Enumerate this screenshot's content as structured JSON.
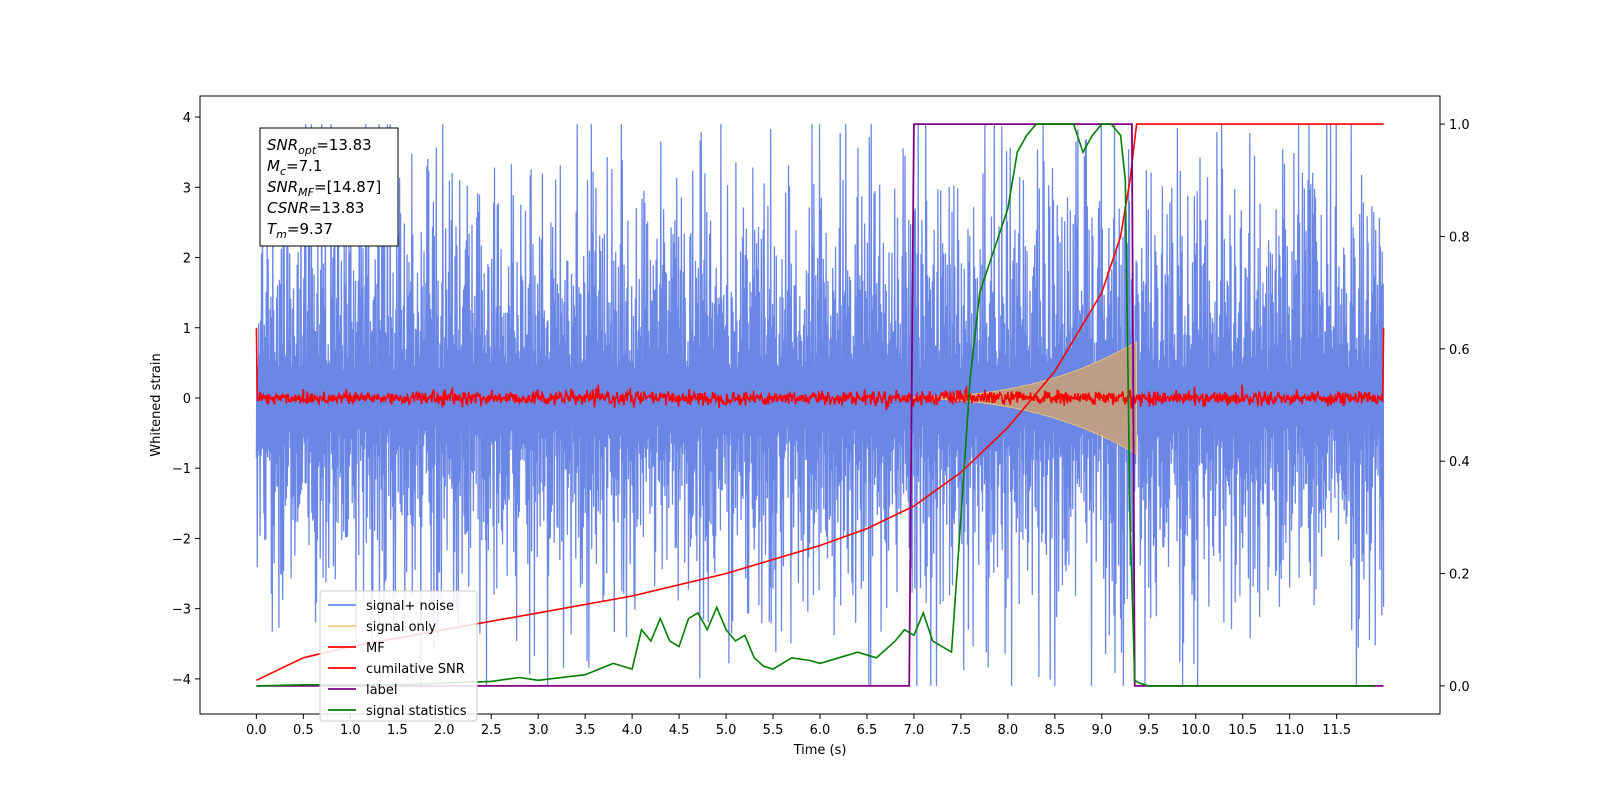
{
  "chart_data": {
    "type": "line",
    "xlabel": "Time (s)",
    "ylabel_left": "Whitened strain",
    "ylabel_right": "",
    "xlim": [
      -0.6,
      12.6
    ],
    "ylim_left": [
      -4.5,
      4.3
    ],
    "ylim_right": [
      -0.05,
      1.05
    ],
    "x_ticks": [
      "0.0",
      "0.5",
      "1.0",
      "1.5",
      "2.0",
      "2.5",
      "3.0",
      "3.5",
      "4.0",
      "4.5",
      "5.0",
      "5.5",
      "6.0",
      "6.5",
      "7.0",
      "7.5",
      "8.0",
      "8.5",
      "9.0",
      "9.5",
      "10.0",
      "10.5",
      "11.0",
      "11.5"
    ],
    "y_left_ticks": [
      "4",
      "3",
      "2",
      "1",
      "0",
      "−1",
      "−2",
      "−3",
      "−4"
    ],
    "y_right_ticks": [
      "1.0",
      "0.8",
      "0.6",
      "0.4",
      "0.2",
      "0.0"
    ],
    "grid": false,
    "legend_position": "lower-left",
    "colors": {
      "signal_noise": "#6b87e6",
      "signal_only": "#f5c97a",
      "signal_band": "#c6a07a",
      "mf": "#ff0000",
      "cumulative_snr": "#ff0000",
      "label": "#800080",
      "signal_statistics": "#008000"
    },
    "annotation": {
      "lines": [
        {
          "base": "SNR",
          "sub": "opt",
          "rest": "=13.83"
        },
        {
          "base": "M",
          "sub": "c",
          "rest": "=7.1"
        },
        {
          "base": "SNR",
          "sub": "MF",
          "rest": "=[14.87]"
        },
        {
          "base": "CSNR",
          "sub": "",
          "rest": "=13.83"
        },
        {
          "base": "T",
          "sub": "m",
          "rest": "=9.37"
        }
      ]
    },
    "series": [
      {
        "name": "signal+ noise",
        "axis": "left",
        "style": "noise band",
        "x_range": [
          0.0,
          12.0
        ],
        "typical_extent": [
          -2.0,
          2.5
        ],
        "max_peak": 3.9,
        "min_peak": -4.1
      },
      {
        "name": "signal only",
        "axis": "left",
        "style": "chirp envelope",
        "start_time": 6.8,
        "end_time": 9.37,
        "peak_amplitude": 0.75
      },
      {
        "name": "MF",
        "axis": "left",
        "style": "noise",
        "x_range": [
          0.0,
          12.0
        ],
        "amplitude": 0.1,
        "edge_values": [
          1.0,
          1.0
        ]
      },
      {
        "name": "cumilative SNR",
        "axis": "right",
        "x": [
          0.0,
          0.5,
          1.0,
          2.0,
          3.0,
          4.0,
          5.0,
          6.0,
          6.5,
          7.0,
          7.5,
          8.0,
          8.5,
          9.0,
          9.2,
          9.3,
          9.37,
          12.0
        ],
        "y": [
          0.01,
          0.05,
          0.07,
          0.1,
          0.13,
          0.16,
          0.2,
          0.25,
          0.28,
          0.32,
          0.38,
          0.46,
          0.56,
          0.7,
          0.8,
          0.9,
          1.0,
          1.0
        ]
      },
      {
        "name": "label",
        "axis": "right",
        "x": [
          0.0,
          6.95,
          7.0,
          9.32,
          9.35,
          12.0
        ],
        "y": [
          0.0,
          0.0,
          1.0,
          1.0,
          0.0,
          0.0
        ]
      },
      {
        "name": "signal statistics",
        "axis": "right",
        "x": [
          0.0,
          0.5,
          1.0,
          1.5,
          2.0,
          2.5,
          2.8,
          3.0,
          3.5,
          3.8,
          4.0,
          4.1,
          4.2,
          4.3,
          4.4,
          4.5,
          4.6,
          4.7,
          4.8,
          4.9,
          5.0,
          5.1,
          5.2,
          5.3,
          5.4,
          5.5,
          5.7,
          5.9,
          6.0,
          6.2,
          6.4,
          6.6,
          6.8,
          6.9,
          7.0,
          7.1,
          7.2,
          7.3,
          7.4,
          7.5,
          7.6,
          7.7,
          7.8,
          7.9,
          8.0,
          8.1,
          8.2,
          8.3,
          8.4,
          8.5,
          8.6,
          8.7,
          8.8,
          8.9,
          9.0,
          9.1,
          9.2,
          9.25,
          9.3,
          9.35,
          9.4,
          9.5,
          10.0,
          11.0,
          11.9
        ],
        "y": [
          0.0,
          0.002,
          0.002,
          0.002,
          0.005,
          0.008,
          0.015,
          0.01,
          0.02,
          0.04,
          0.03,
          0.1,
          0.08,
          0.12,
          0.08,
          0.07,
          0.12,
          0.13,
          0.1,
          0.14,
          0.1,
          0.08,
          0.09,
          0.05,
          0.035,
          0.03,
          0.05,
          0.045,
          0.04,
          0.05,
          0.06,
          0.05,
          0.08,
          0.1,
          0.09,
          0.13,
          0.08,
          0.07,
          0.06,
          0.3,
          0.55,
          0.7,
          0.75,
          0.8,
          0.85,
          0.95,
          0.98,
          1.0,
          1.0,
          1.0,
          1.0,
          1.0,
          0.95,
          0.98,
          1.0,
          1.0,
          0.98,
          0.9,
          0.3,
          0.01,
          0.005,
          0.0,
          0.0,
          0.0,
          0.0
        ]
      }
    ]
  }
}
